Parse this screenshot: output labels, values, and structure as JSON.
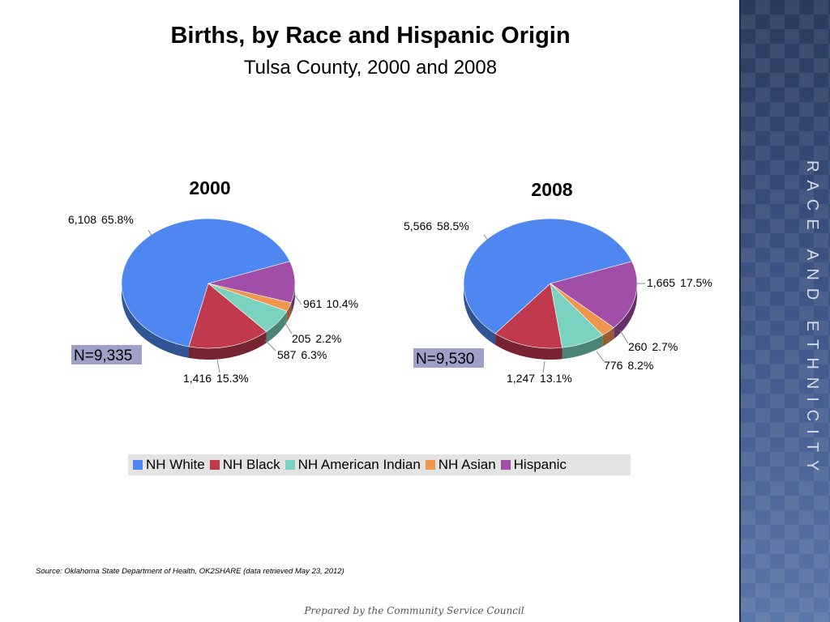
{
  "title": "Births, by Race and Hispanic Origin",
  "subtitle": "Tulsa County, 2000 and 2008",
  "sidebar_label": "Race and Ethnicity",
  "source": "Source:  Oklahoma State Department of Health, OK2SHARE (data retrieved May 23, 2012)",
  "footer": "Prepared by the Community Service Council",
  "legend": [
    {
      "name": "NH White",
      "color": "#4f87f0"
    },
    {
      "name": "NH Black",
      "color": "#c0394d"
    },
    {
      "name": "NH American Indian",
      "color": "#7ad3c0"
    },
    {
      "name": "NH Asian",
      "color": "#f0964f"
    },
    {
      "name": "Hispanic",
      "color": "#a04ea8"
    }
  ],
  "chart_data": [
    {
      "type": "pie",
      "title": "2000",
      "total_label": "N=9,335",
      "categories": [
        "NH White",
        "NH Black",
        "NH American Indian",
        "NH Asian",
        "Hispanic"
      ],
      "values": [
        6108,
        1416,
        587,
        205,
        961
      ],
      "percent_labels": [
        "65.8%",
        "15.3%",
        "6.3%",
        "2.2%",
        "10.4%"
      ],
      "value_labels": [
        "6,108",
        "1,416",
        "587",
        "205",
        "961"
      ]
    },
    {
      "type": "pie",
      "title": "2008",
      "total_label": "N=9,530",
      "categories": [
        "NH White",
        "NH Black",
        "NH American Indian",
        "NH Asian",
        "Hispanic"
      ],
      "values": [
        5566,
        1247,
        776,
        260,
        1665
      ],
      "percent_labels": [
        "58.5%",
        "13.1%",
        "8.2%",
        "2.7%",
        "17.5%"
      ],
      "value_labels": [
        "5,566",
        "1,247",
        "776",
        "260",
        "1,665"
      ]
    }
  ]
}
